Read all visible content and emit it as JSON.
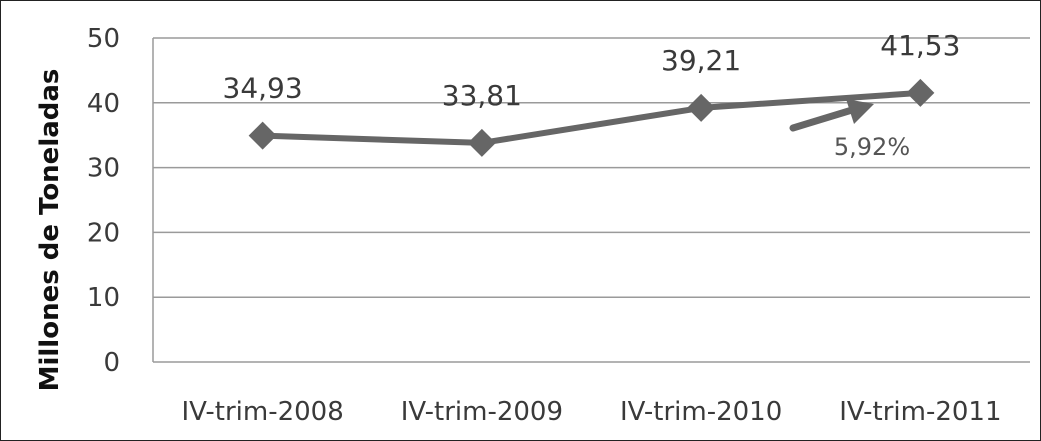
{
  "chart_data": {
    "type": "line",
    "title": "",
    "xlabel": "",
    "ylabel": "Millones de Toneladas",
    "categories": [
      "IV-trim-2008",
      "IV-trim-2009",
      "IV-trim-2010",
      "IV-trim-2011"
    ],
    "series": [
      {
        "values": [
          34.93,
          33.81,
          39.21,
          41.53
        ],
        "labels": [
          "34,93",
          "33,81",
          "39,21",
          "41,53"
        ],
        "color": "#666666",
        "marker": "diamond"
      }
    ],
    "ylim": [
      0,
      50
    ],
    "yticks": [
      "0",
      "10",
      "20",
      "30",
      "40",
      "50"
    ],
    "grid": true,
    "legend": "none",
    "annotation": {
      "text": "5,92%",
      "type": "arrow",
      "color": "#666666"
    }
  }
}
